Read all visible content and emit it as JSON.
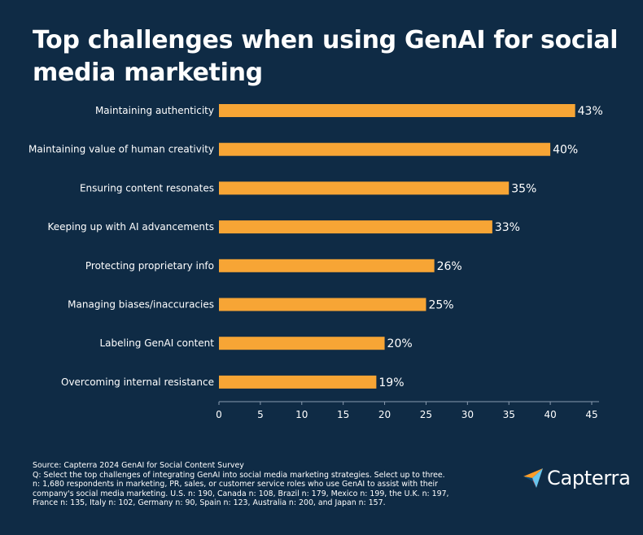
{
  "title": "Top challenges when using GenAI for social media marketing",
  "chart_data": {
    "type": "bar",
    "orientation": "horizontal",
    "title": "Top challenges when using GenAI for social media marketing",
    "categories": [
      "Maintaining authenticity",
      "Maintaining value of human creativity",
      "Ensuring content resonates",
      "Keeping up with AI advancements",
      "Protecting proprietary info",
      "Managing biases/inaccuracies",
      "Labeling GenAI content",
      "Overcoming internal resistance"
    ],
    "values": [
      43,
      40,
      35,
      33,
      26,
      25,
      20,
      19
    ],
    "value_labels": [
      "43%",
      "40%",
      "35%",
      "33%",
      "26%",
      "25%",
      "20%",
      "19%"
    ],
    "xlim": [
      0,
      45
    ],
    "xticks": [
      "0",
      "5",
      "10",
      "15",
      "20",
      "25",
      "30",
      "35",
      "40",
      "45"
    ],
    "xlabel": "",
    "ylabel": "",
    "bar_color": "#f7a535"
  },
  "footer": {
    "source": "Source: Capterra 2024 GenAI for Social Content Survey",
    "question": "Q: Select the top challenges of integrating GenAI into social media marketing strategies. Select up to three.",
    "sample": "n: 1,680 respondents in marketing, PR, sales, or customer service roles who use GenAI to assist with their company's social media marketing. U.S. n: 190, Canada n: 108, Brazil n: 179, Mexico n: 199, the U.K. n: 197, France n: 135, Italy n: 102, Germany n: 90, Spain n: 123, Australia n: 200, and Japan n: 157."
  },
  "brand": {
    "name": "Capterra",
    "logo_icon": "capterra-arrow-icon",
    "colors": {
      "background": "#0f2b45",
      "accent": "#f7a535",
      "text": "#ffffff"
    }
  }
}
